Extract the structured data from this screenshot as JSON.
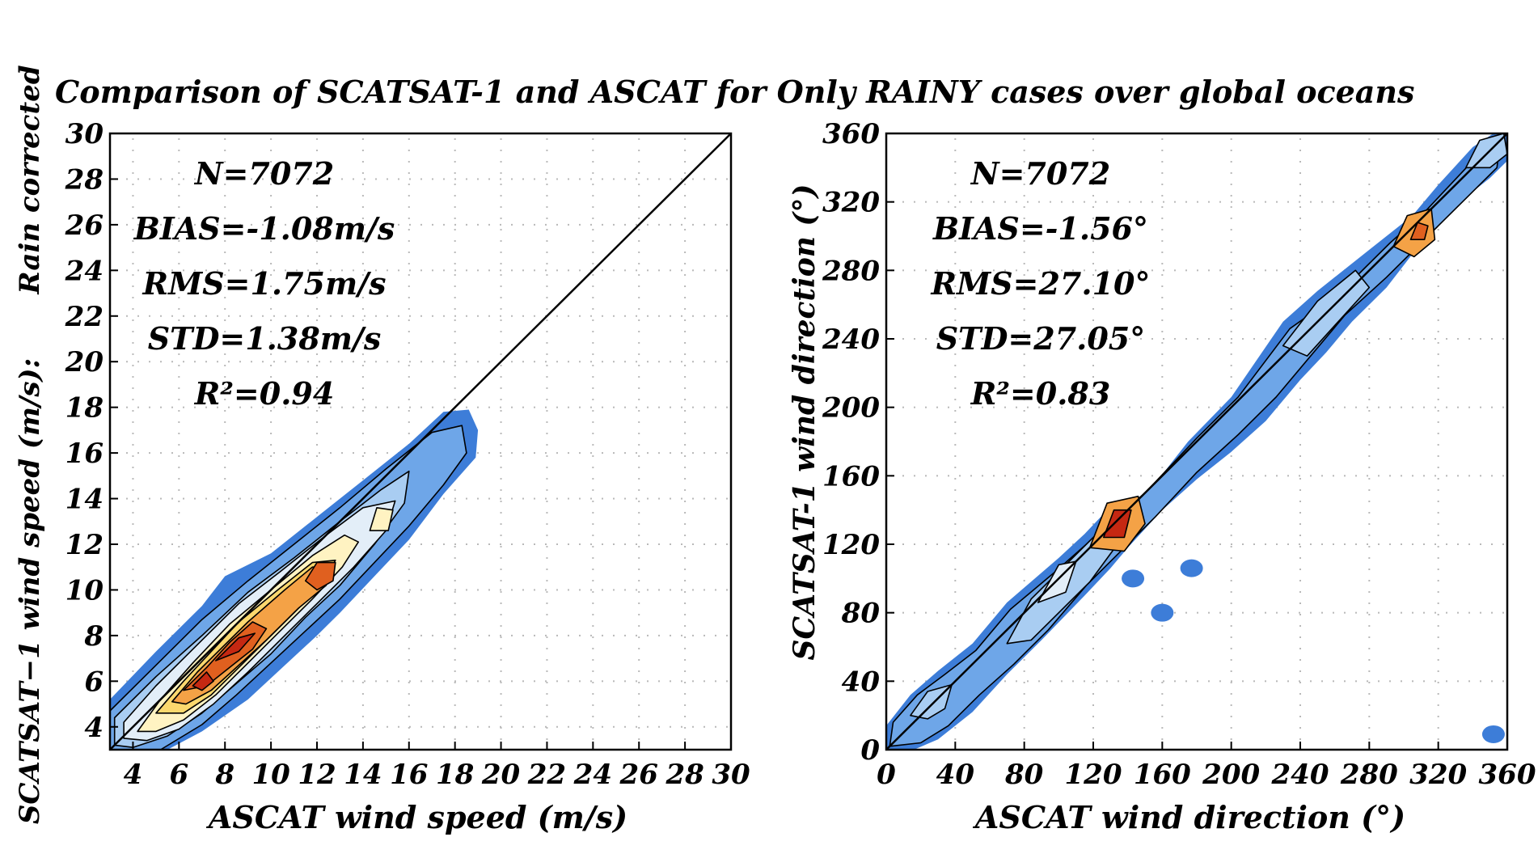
{
  "figure": {
    "title": "Comparison of SCATSAT-1 and ASCAT for Only RAINY cases over global oceans",
    "side_label": "Rain corrected",
    "colors": {
      "blue_outer": "#3d7dd8",
      "blue_mid": "#6ea6e8",
      "blue_light": "#a9cdf2",
      "pale": "#e3eef8",
      "cream": "#fff3c2",
      "yellow": "#fbd86e",
      "orange": "#f4a246",
      "red_orange": "#e0601f",
      "red": "#c52812"
    }
  },
  "chart_data": [
    {
      "type": "heatmap",
      "subtype": "density-contour",
      "xlabel": "ASCAT wind speed (m/s)",
      "ylabel": "SCATSAT-1 wind speed (m/s): Rain corrected",
      "xlim": [
        3,
        30
      ],
      "ylim": [
        3,
        30
      ],
      "xticks": [
        4,
        6,
        8,
        10,
        12,
        14,
        16,
        18,
        20,
        22,
        24,
        26,
        28,
        30
      ],
      "yticks": [
        4,
        6,
        8,
        10,
        12,
        14,
        16,
        18,
        20,
        22,
        24,
        26,
        28,
        30
      ],
      "grid": true,
      "reference_line": {
        "x": [
          3,
          30
        ],
        "y": [
          3,
          30
        ]
      },
      "stats": [
        "N=7072",
        "BIAS=-1.08m/s",
        "RMS=1.75m/s",
        "STD=1.38m/s",
        "R²=0.94"
      ],
      "density_peaks": [
        {
          "x": 7,
          "y": 6
        },
        {
          "x": 9,
          "y": 8
        },
        {
          "x": 12.2,
          "y": 10.8
        },
        {
          "x": 14.9,
          "y": 13.2
        }
      ],
      "density_extent": {
        "x": [
          3,
          19
        ],
        "y": [
          3,
          18
        ]
      }
    },
    {
      "type": "heatmap",
      "subtype": "density-contour",
      "xlabel": "ASCAT wind direction (°)",
      "ylabel": "SCATSAT-1 wind direction (°)",
      "xlim": [
        0,
        360
      ],
      "ylim": [
        0,
        360
      ],
      "xticks": [
        0,
        40,
        80,
        120,
        160,
        200,
        240,
        280,
        320,
        360
      ],
      "yticks": [
        0,
        40,
        80,
        120,
        160,
        200,
        240,
        280,
        320,
        360
      ],
      "grid": true,
      "reference_line": {
        "x": [
          0,
          360
        ],
        "y": [
          0,
          360
        ]
      },
      "stats": [
        "N=7072",
        "BIAS=-1.56°",
        "RMS=27.10°",
        "STD=27.05°",
        "R²=0.83"
      ],
      "density_peaks": [
        {
          "x": 30,
          "y": 30
        },
        {
          "x": 100,
          "y": 100
        },
        {
          "x": 135,
          "y": 132
        },
        {
          "x": 260,
          "y": 260
        },
        {
          "x": 310,
          "y": 302
        },
        {
          "x": 350,
          "y": 350
        }
      ],
      "outlier_blobs": [
        {
          "x": 143,
          "y": 100
        },
        {
          "x": 160,
          "y": 80
        },
        {
          "x": 177,
          "y": 106
        },
        {
          "x": 352,
          "y": 9
        }
      ]
    }
  ]
}
